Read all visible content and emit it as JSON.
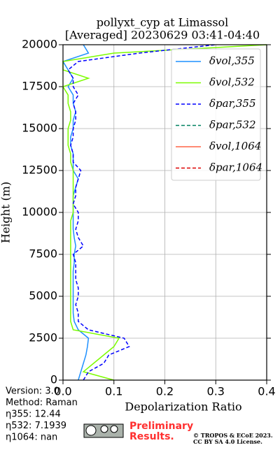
{
  "chart_data": {
    "type": "line",
    "title": "pollyxt_cyp at Limassol",
    "subtitle": "[Averaged] 20230629 03:41-04:40",
    "xlabel": "Depolarization Ratio",
    "ylabel": "Height (m)",
    "xlim": [
      0,
      0.4
    ],
    "xticks": [
      {
        "value": 0,
        "label": "0.0"
      },
      0.1,
      0.2,
      0.3,
      0.4
    ],
    "ylim": [
      0,
      20000
    ],
    "yticks": [
      0,
      2500,
      5000,
      7500,
      10000,
      12500,
      15000,
      17500,
      20000
    ],
    "grid": true,
    "legend": "upper right",
    "heights": [
      0,
      500,
      1000,
      1500,
      2000,
      2500,
      3000,
      3500,
      4000,
      4500,
      5000,
      5500,
      6000,
      6500,
      7000,
      7500,
      8000,
      8500,
      9000,
      9500,
      10000,
      10500,
      11000,
      11500,
      12000,
      12500,
      13000,
      13500,
      14000,
      14500,
      15000,
      15500,
      16000,
      16500,
      17000,
      17500,
      18000,
      18500,
      19000,
      19500,
      20000
    ],
    "series": [
      {
        "name": "δvol,355",
        "color": "#1e90ff",
        "dash": false,
        "values": [
          0.03,
          0.035,
          0.04,
          0.045,
          0.048,
          0.05,
          0.03,
          0.022,
          0.02,
          0.02,
          0.02,
          0.02,
          0.02,
          0.02,
          0.022,
          0.022,
          0.025,
          0.022,
          0.02,
          0.02,
          0.02,
          0.02,
          0.02,
          0.025,
          0.03,
          0.02,
          0.02,
          0.02,
          0.015,
          0.015,
          0.02,
          0.02,
          0.025,
          0.02,
          0.02,
          0.01,
          0.02,
          0.01,
          0.0,
          0.05,
          0.04
        ]
      },
      {
        "name": "δvol,532",
        "color": "#7cfc00",
        "dash": false,
        "values": [
          0.1,
          0.04,
          0.06,
          0.08,
          0.1,
          0.11,
          0.02,
          0.015,
          0.015,
          0.015,
          0.015,
          0.015,
          0.015,
          0.015,
          0.015,
          0.015,
          0.015,
          0.015,
          0.015,
          0.015,
          0.02,
          0.02,
          0.02,
          0.02,
          0.02,
          0.02,
          0.015,
          0.015,
          0.01,
          0.01,
          0.01,
          0.015,
          0.015,
          0.01,
          0.01,
          0.0,
          0.05,
          0.0,
          0.0,
          0.1,
          0.4
        ]
      },
      {
        "name": "δpar,355",
        "color": "#0000ff",
        "dash": true,
        "values": [
          0.04,
          0.05,
          0.08,
          0.09,
          0.13,
          0.12,
          0.05,
          0.03,
          0.03,
          0.025,
          0.03,
          0.03,
          0.025,
          0.025,
          0.025,
          0.02,
          0.04,
          0.03,
          0.025,
          0.03,
          0.03,
          0.02,
          0.025,
          0.025,
          0.03,
          0.035,
          0.02,
          0.02,
          0.015,
          0.02,
          0.02,
          0.025,
          0.025,
          0.02,
          0.03,
          0.02,
          0.02,
          0.01,
          0.03,
          0.15,
          0.3
        ]
      },
      {
        "name": "δpar,532",
        "color": "#008060",
        "dash": true,
        "values": [
          null,
          null,
          null,
          null,
          null,
          null,
          null,
          null,
          null,
          null,
          null,
          null,
          null,
          null,
          null,
          null,
          null,
          null,
          null,
          null,
          null,
          null,
          null,
          null,
          null,
          null,
          null,
          null,
          null,
          null,
          null,
          null,
          null,
          null,
          null,
          null,
          null,
          null,
          null,
          null,
          null
        ]
      },
      {
        "name": "δvol,1064",
        "color": "#ff6347",
        "dash": false,
        "values": [
          null,
          null,
          null,
          null,
          null,
          null,
          null,
          null,
          null,
          null,
          null,
          null,
          null,
          null,
          null,
          null,
          null,
          null,
          null,
          null,
          null,
          null,
          null,
          null,
          null,
          null,
          null,
          null,
          null,
          null,
          null,
          null,
          null,
          null,
          null,
          null,
          null,
          null,
          null,
          null,
          null
        ]
      },
      {
        "name": "δpar,1064",
        "color": "#dd0000",
        "dash": true,
        "values": [
          null,
          null,
          null,
          null,
          null,
          null,
          null,
          null,
          null,
          null,
          null,
          null,
          null,
          null,
          null,
          null,
          null,
          null,
          null,
          null,
          null,
          null,
          null,
          null,
          null,
          null,
          null,
          null,
          null,
          null,
          null,
          null,
          null,
          null,
          null,
          null,
          null,
          null,
          null,
          null,
          null
        ]
      }
    ],
    "annotations": [
      "Version: 3.0",
      "Method: Raman",
      "η355:  12.44",
      "η532: 7.1939",
      "η1064:    nan"
    ],
    "badge": [
      "Preliminary",
      "Results."
    ],
    "copyright": [
      "© TROPOS & ECoE 2023.",
      "CC BY SA 4.0 License."
    ]
  }
}
